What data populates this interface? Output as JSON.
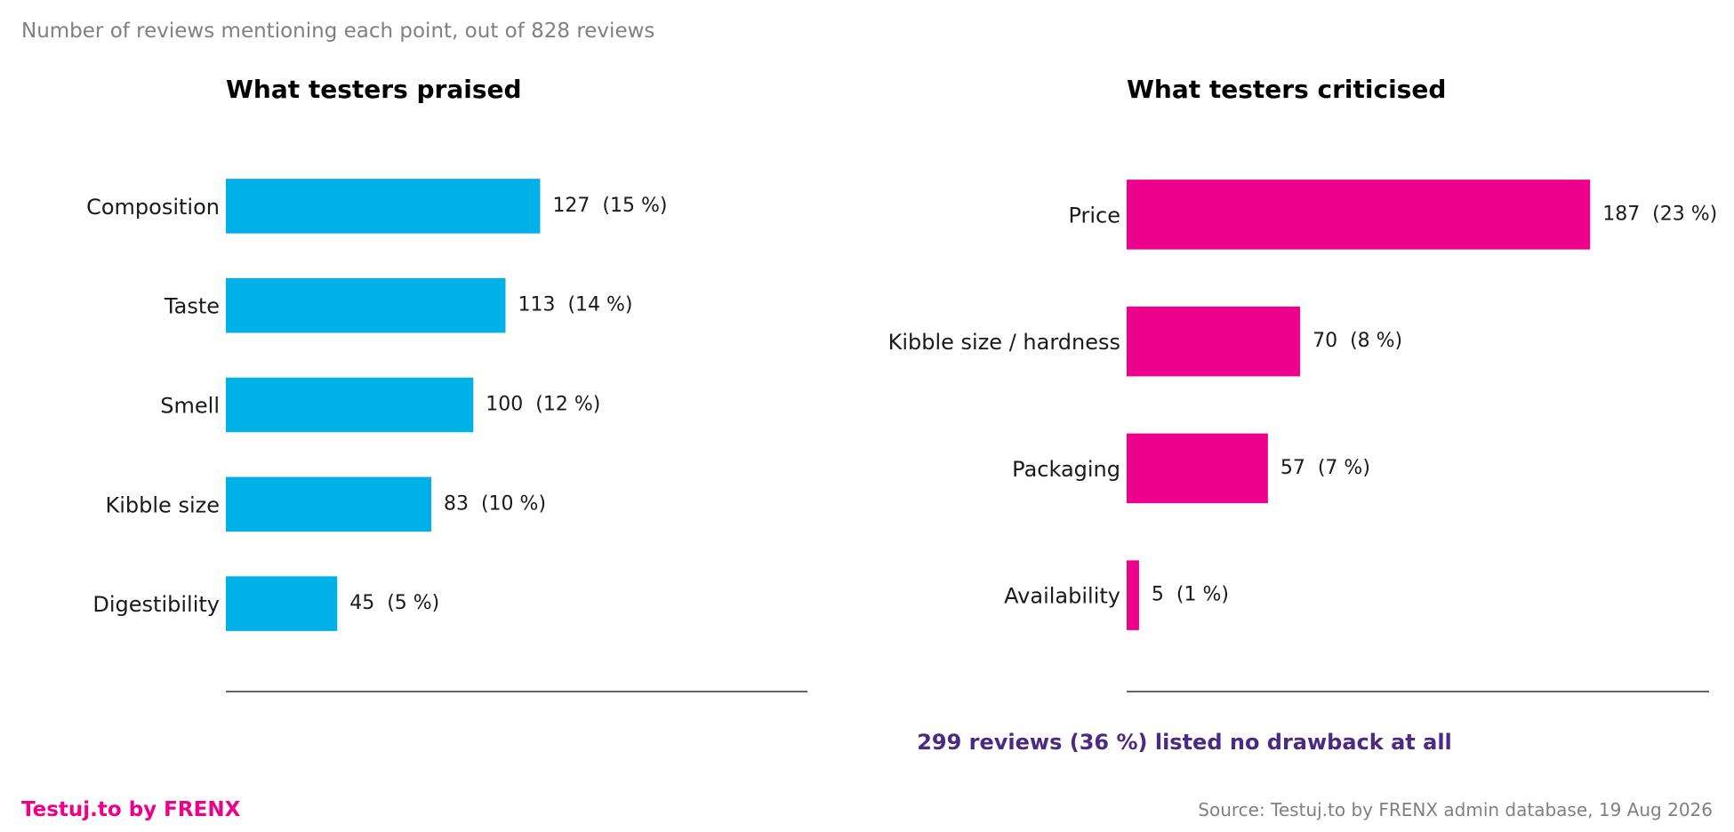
{
  "header": {
    "subtitle": "Number of reviews mentioning each point, out of 828 reviews"
  },
  "footer": {
    "no_drawback_note": "299 reviews (36 %) listed no drawback at all",
    "brand": "Testuj.to by FRENX",
    "source": "Source: Testuj.to by FRENX admin database, 19 Aug 2026"
  },
  "colors": {
    "praised": "#00b0e6",
    "criticised": "#ec008c",
    "note": "#4a2a82",
    "brand": "#ec008c"
  },
  "chart_data": [
    {
      "type": "bar",
      "orientation": "horizontal",
      "title": "What testers praised",
      "xlim": [
        0,
        235
      ],
      "categories": [
        "Composition",
        "Taste",
        "Smell",
        "Kibble size",
        "Digestibility"
      ],
      "values": [
        127,
        113,
        100,
        83,
        45
      ],
      "labels": [
        "127  (15 %)",
        "113  (14 %)",
        "100  (12 %)",
        "83  (10 %)",
        "45  (5 %)"
      ],
      "grid": false
    },
    {
      "type": "bar",
      "orientation": "horizontal",
      "title": "What testers criticised",
      "xlim": [
        0,
        235
      ],
      "categories": [
        "Price",
        "Kibble size / hardness",
        "Packaging",
        "Availability"
      ],
      "values": [
        187,
        70,
        57,
        5
      ],
      "labels": [
        "187  (23 %)",
        "70  (8 %)",
        "57  (7 %)",
        "5  (1 %)"
      ],
      "grid": false
    }
  ]
}
